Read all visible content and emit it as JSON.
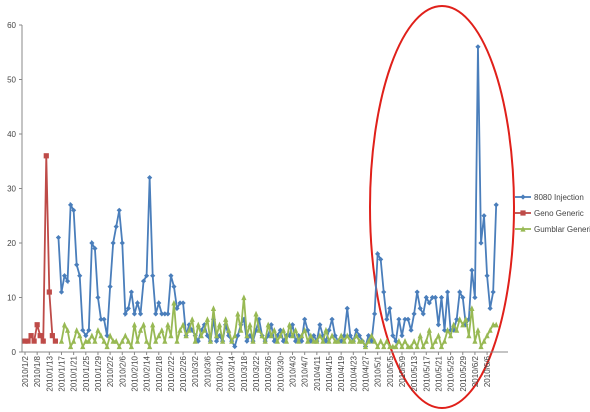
{
  "chart_data": {
    "type": "line",
    "categories": [
      "2010/1/2",
      null,
      null,
      null,
      "2010/1/8",
      null,
      null,
      null,
      "2010/1/13",
      null,
      null,
      null,
      "2010/1/17",
      null,
      null,
      null,
      "2010/1/21",
      null,
      null,
      null,
      "2010/1/25",
      null,
      null,
      null,
      "2010/1/29",
      null,
      null,
      null,
      "2010/2/2",
      null,
      null,
      null,
      "2010/2/6",
      null,
      null,
      null,
      "2010/2/10",
      null,
      null,
      null,
      "2010/2/14",
      null,
      null,
      null,
      "2010/2/18",
      null,
      null,
      null,
      "2010/2/22",
      null,
      null,
      null,
      "2010/2/26",
      null,
      null,
      null,
      "2010/3/2",
      null,
      null,
      null,
      "2010/3/6",
      null,
      null,
      null,
      "2010/3/10",
      null,
      null,
      null,
      "2010/3/14",
      null,
      null,
      null,
      "2010/3/18",
      null,
      null,
      null,
      "2010/3/22",
      null,
      null,
      null,
      "2010/3/26",
      null,
      null,
      null,
      "2010/3/30",
      null,
      null,
      null,
      "2010/4/3",
      null,
      null,
      null,
      "2010/4/7",
      null,
      null,
      null,
      "2010/4/11",
      null,
      null,
      null,
      "2010/4/15",
      null,
      null,
      null,
      "2010/4/19",
      null,
      null,
      null,
      "2010/4/23",
      null,
      null,
      null,
      "2010/4/27",
      null,
      null,
      null,
      "2010/5/1",
      null,
      null,
      null,
      "2010/5/5",
      null,
      null,
      null,
      "2010/5/9",
      null,
      null,
      null,
      "2010/5/13",
      null,
      null,
      null,
      "2010/5/17",
      null,
      null,
      null,
      "2010/5/21",
      null,
      null,
      null,
      "2010/5/25",
      null,
      null,
      null,
      "2010/5/29",
      null,
      null,
      null,
      "2010/6/2",
      null,
      null,
      null,
      "2010/6/6",
      null,
      null,
      null
    ],
    "series": [
      {
        "name": "8080 Injection",
        "color": "#4a7ebb",
        "marker": "diamond",
        "values": [
          null,
          null,
          null,
          null,
          null,
          null,
          null,
          null,
          null,
          null,
          null,
          21,
          11,
          14,
          13,
          27,
          26,
          16,
          14,
          4,
          3,
          4,
          20,
          19,
          10,
          6,
          6,
          3,
          12,
          20,
          23,
          26,
          20,
          7,
          8,
          11,
          7,
          9,
          7,
          13,
          14,
          32,
          14,
          7,
          9,
          7,
          7,
          7,
          14,
          12,
          8,
          9,
          9,
          3,
          5,
          4,
          3,
          2,
          4,
          5,
          3,
          2,
          6,
          2,
          3,
          2,
          5,
          3,
          2,
          1,
          3,
          5,
          6,
          2,
          3,
          2,
          4,
          6,
          3,
          2,
          3,
          5,
          2,
          3,
          4,
          2,
          3,
          3,
          5,
          2,
          3,
          2,
          6,
          4,
          2,
          3,
          2,
          5,
          3,
          2,
          4,
          6,
          3,
          2,
          2,
          3,
          8,
          3,
          2,
          4,
          3,
          2,
          1,
          3,
          2,
          7,
          18,
          17,
          11,
          6,
          8,
          3,
          2,
          6,
          3,
          6,
          6,
          4,
          7,
          11,
          8,
          7,
          10,
          9,
          10,
          10,
          5,
          10,
          4,
          11,
          4,
          4,
          6,
          11,
          10,
          5,
          6,
          15,
          10,
          56,
          20,
          25,
          14,
          8,
          11,
          27
        ]
      },
      {
        "name": "Geno Generic",
        "color": "#be4b48",
        "marker": "square",
        "values": [
          2,
          2,
          3,
          2,
          5,
          3,
          2,
          36,
          11,
          3,
          2,
          null,
          null,
          null,
          null,
          null,
          null,
          null,
          null,
          null,
          null,
          null,
          null,
          null,
          null,
          null,
          null,
          null,
          null,
          null,
          null,
          null,
          null,
          null,
          null,
          null,
          null,
          null,
          null,
          null,
          null,
          null,
          null,
          null,
          null,
          null,
          null,
          null,
          null,
          null,
          null,
          null,
          null,
          null,
          null,
          null,
          null,
          null,
          null,
          null,
          null,
          null,
          null,
          null,
          null,
          null,
          null,
          null,
          null,
          null,
          null,
          null,
          null,
          null,
          null,
          null,
          null,
          null,
          null,
          null,
          null,
          null,
          null,
          null,
          null,
          null,
          null,
          null,
          null,
          null,
          null,
          null,
          null,
          null,
          null,
          null,
          null,
          null,
          null,
          null,
          null,
          null,
          null,
          null,
          null,
          null,
          null,
          null,
          null,
          null,
          null,
          null,
          null,
          null,
          null,
          null,
          null,
          null,
          null,
          null,
          null,
          null,
          null,
          null,
          null,
          null,
          null,
          null,
          null,
          null,
          null,
          null,
          null,
          null,
          null,
          null,
          null,
          null,
          null,
          null,
          null,
          null,
          null,
          null,
          null,
          null,
          null,
          null,
          null,
          null,
          null,
          null,
          null,
          null,
          null,
          null
        ]
      },
      {
        "name": "Gumblar Generic",
        "color": "#98b954",
        "marker": "triangle",
        "values": [
          null,
          null,
          null,
          null,
          null,
          null,
          null,
          null,
          null,
          null,
          null,
          null,
          2,
          5,
          4,
          1,
          2,
          4,
          3,
          1,
          2,
          2,
          3,
          2,
          4,
          3,
          2,
          1,
          3,
          2,
          2,
          1,
          2,
          3,
          2,
          1,
          5,
          2,
          4,
          5,
          2,
          1,
          5,
          2,
          3,
          4,
          2,
          5,
          3,
          9,
          2,
          4,
          5,
          3,
          4,
          6,
          2,
          5,
          3,
          4,
          6,
          2,
          8,
          3,
          5,
          2,
          6,
          4,
          2,
          3,
          7,
          4,
          10,
          3,
          5,
          2,
          7,
          4,
          3,
          2,
          5,
          3,
          4,
          2,
          3,
          4,
          2,
          5,
          3,
          4,
          2,
          3,
          4,
          2,
          3,
          2,
          2,
          3,
          2,
          4,
          2,
          3,
          2,
          2,
          3,
          2,
          3,
          2,
          2,
          3,
          2,
          2,
          1,
          2,
          3,
          2,
          1,
          2,
          1,
          2,
          1,
          1,
          1,
          2,
          1,
          2,
          1,
          1,
          2,
          1,
          3,
          1,
          2,
          4,
          1,
          2,
          3,
          1,
          2,
          4,
          3,
          5,
          4,
          6,
          5,
          6,
          3,
          8,
          2,
          4,
          1,
          2,
          3,
          4,
          5,
          5
        ]
      }
    ],
    "ylim": [
      0,
      60
    ],
    "yticks": [
      0,
      10,
      20,
      30,
      40,
      50,
      60
    ],
    "grid": false,
    "legend": "right"
  }
}
